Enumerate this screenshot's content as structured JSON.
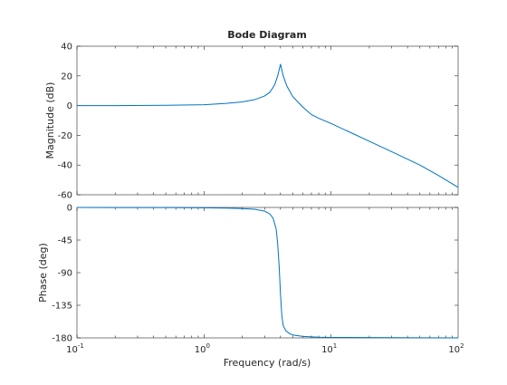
{
  "chart_data": {
    "type": "line",
    "title": "Bode Diagram",
    "xlabel": "Frequency  (rad/s)",
    "x_scale": "log",
    "xlim": [
      0.1,
      100
    ],
    "x_ticks": [
      {
        "value": 0.1,
        "base": "10",
        "exp": "-1"
      },
      {
        "value": 1,
        "base": "10",
        "exp": "0"
      },
      {
        "value": 10,
        "base": "10",
        "exp": "1"
      },
      {
        "value": 100,
        "base": "10",
        "exp": "2"
      }
    ],
    "line_color": "#0072bd",
    "panels": [
      {
        "ylabel": "Magnitude (dB)",
        "ylim": [
          -60,
          40
        ],
        "y_ticks": [
          40,
          20,
          0,
          -20,
          -40,
          -60
        ],
        "y_tick_labels": [
          "40",
          "20",
          "0",
          "-20",
          "-40",
          "-60"
        ],
        "series": [
          {
            "x": [
              0.1,
              0.2,
              0.5,
              1,
              1.5,
              2,
              2.5,
              3,
              3.3,
              3.6,
              3.8,
              3.95,
              4.0,
              4.05,
              4.2,
              4.5,
              5,
              6,
              7,
              8,
              10,
              15,
              20,
              30,
              50,
              70,
              100
            ],
            "y": [
              0,
              0,
              0.2,
              0.6,
              1.5,
              2.5,
              4,
              6.5,
              9,
              14,
              20,
              26,
              28,
              26,
              20,
              13,
              6,
              -1,
              -6,
              -8.5,
              -12,
              -19,
              -24,
              -31,
              -40,
              -47,
              -55
            ]
          }
        ]
      },
      {
        "ylabel": "Phase (deg)",
        "ylim": [
          -180,
          0
        ],
        "y_ticks": [
          0,
          -45,
          -90,
          -135,
          -180
        ],
        "y_tick_labels": [
          "0",
          "-45",
          "-90",
          "-135",
          "-180"
        ],
        "series": [
          {
            "x": [
              0.1,
              0.5,
              1,
              1.5,
              2,
              2.5,
              3,
              3.3,
              3.5,
              3.7,
              3.8,
              3.9,
              3.95,
              4.0,
              4.05,
              4.1,
              4.2,
              4.4,
              4.7,
              5,
              6,
              8,
              10,
              20,
              50,
              100
            ],
            "y": [
              0,
              -0.2,
              -0.5,
              -1,
              -1.5,
              -2.5,
              -5,
              -9,
              -15,
              -30,
              -50,
              -80,
              -100,
              -120,
              -135,
              -150,
              -163,
              -170,
              -174,
              -176,
              -178,
              -179,
              -179.3,
              -179.6,
              -179.8,
              -180
            ]
          }
        ]
      }
    ]
  }
}
